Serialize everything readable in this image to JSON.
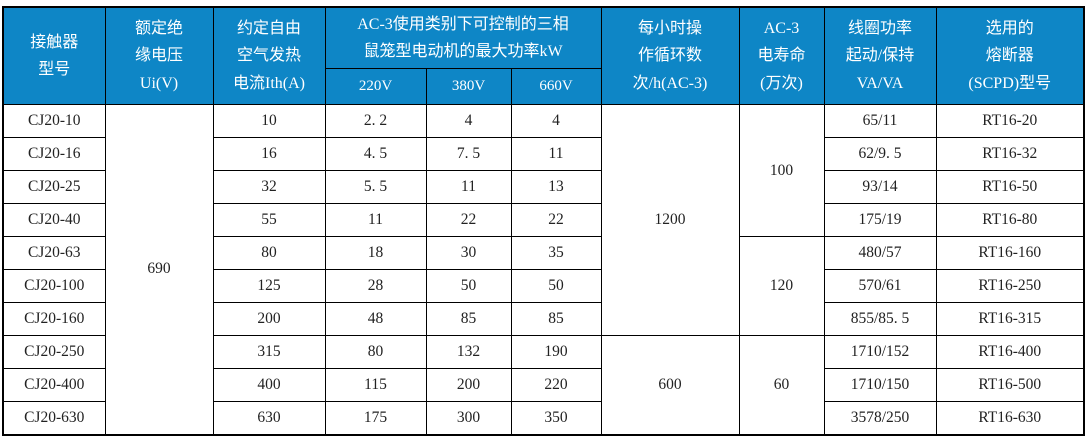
{
  "colors": {
    "header_bg": "#0e86c6",
    "header_text": "#ffffff",
    "body_text": "#222222",
    "border": "#000000",
    "page_bg": "#ffffff"
  },
  "table": {
    "header": {
      "model": "接触器\n型号",
      "ui": "额定绝\n缘电压\nUi(V)",
      "ith": "约定自由\n空气发热\n电流Ith(A)",
      "kw_group": "AC-3使用类别下可控制的三相\n鼠笼型电动机的最大功率kW",
      "kw_sub": [
        "220V",
        "380V",
        "660V"
      ],
      "cycles": "每小时操\n作循环数\n次/h(AC-3)",
      "life": "AC-3\n电寿命\n(万次)",
      "coil": "线圈功率\n起动/保持\nVA/VA",
      "fuse": "选用的\n熔断器\n(SCPD)型号"
    },
    "rows": [
      {
        "model": "CJ20-10",
        "ith": "10",
        "kw220": "2. 2",
        "kw380": "4",
        "kw660": "4",
        "coil": "65/11",
        "fuse": "RT16-20"
      },
      {
        "model": "CJ20-16",
        "ith": "16",
        "kw220": "4. 5",
        "kw380": "7. 5",
        "kw660": "11",
        "coil": "62/9. 5",
        "fuse": "RT16-32"
      },
      {
        "model": "CJ20-25",
        "ith": "32",
        "kw220": "5. 5",
        "kw380": "11",
        "kw660": "13",
        "coil": "93/14",
        "fuse": "RT16-50"
      },
      {
        "model": "CJ20-40",
        "ith": "55",
        "kw220": "11",
        "kw380": "22",
        "kw660": "22",
        "coil": "175/19",
        "fuse": "RT16-80"
      },
      {
        "model": "CJ20-63",
        "ith": "80",
        "kw220": "18",
        "kw380": "30",
        "kw660": "35",
        "coil": "480/57",
        "fuse": "RT16-160"
      },
      {
        "model": "CJ20-100",
        "ith": "125",
        "kw220": "28",
        "kw380": "50",
        "kw660": "50",
        "coil": "570/61",
        "fuse": "RT16-250"
      },
      {
        "model": "CJ20-160",
        "ith": "200",
        "kw220": "48",
        "kw380": "85",
        "kw660": "85",
        "coil": "855/85. 5",
        "fuse": "RT16-315"
      },
      {
        "model": "CJ20-250",
        "ith": "315",
        "kw220": "80",
        "kw380": "132",
        "kw660": "190",
        "coil": "1710/152",
        "fuse": "RT16-400"
      },
      {
        "model": "CJ20-400",
        "ith": "400",
        "kw220": "115",
        "kw380": "200",
        "kw660": "220",
        "coil": "1710/150",
        "fuse": "RT16-500"
      },
      {
        "model": "CJ20-630",
        "ith": "630",
        "kw220": "175",
        "kw380": "300",
        "kw660": "350",
        "coil": "3578/250",
        "fuse": "RT16-630"
      }
    ],
    "merged": {
      "ui": {
        "value": "690",
        "start": 0,
        "span": 10
      },
      "cycles": [
        {
          "value": "1200",
          "start": 0,
          "span": 7
        },
        {
          "value": "600",
          "start": 7,
          "span": 3
        }
      ],
      "life": [
        {
          "value": "100",
          "start": 0,
          "span": 4
        },
        {
          "value": "120",
          "start": 4,
          "span": 3
        },
        {
          "value": "60",
          "start": 7,
          "span": 3
        }
      ]
    }
  }
}
